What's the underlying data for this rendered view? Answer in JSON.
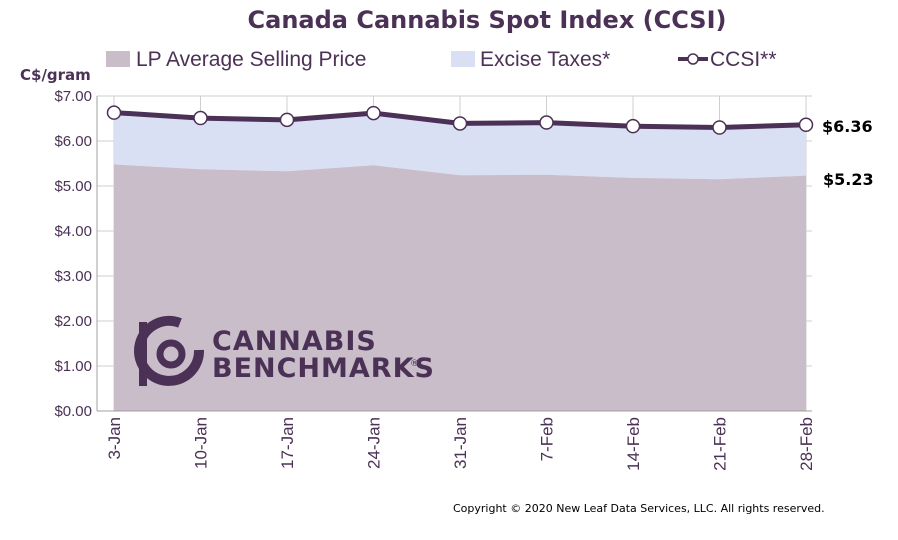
{
  "chart_data": {
    "type": "area",
    "title": "Canada Cannabis Spot Index (CCSI)",
    "ylabel": "C$/gram",
    "xlabel": "",
    "categories": [
      "3-Jan",
      "10-Jan",
      "17-Jan",
      "24-Jan",
      "31-Jan",
      "7-Feb",
      "14-Feb",
      "21-Feb",
      "28-Feb"
    ],
    "ylim": [
      0,
      7
    ],
    "yticks": [
      "$0.00",
      "$1.00",
      "$2.00",
      "$3.00",
      "$4.00",
      "$5.00",
      "$6.00",
      "$7.00"
    ],
    "stacked": true,
    "grid": true,
    "legend_position": "top",
    "series": [
      {
        "name": "LP Average Selling Price",
        "kind": "area",
        "color": "#c9bdc9",
        "values": [
          5.48,
          5.37,
          5.33,
          5.46,
          5.24,
          5.25,
          5.18,
          5.15,
          5.23
        ]
      },
      {
        "name": "Excise Taxes*",
        "kind": "area",
        "color": "#d9e0f3",
        "values": [
          1.15,
          1.14,
          1.14,
          1.16,
          1.15,
          1.16,
          1.15,
          1.15,
          1.13
        ]
      },
      {
        "name": "CCSI**",
        "kind": "line",
        "color": "#4b3155",
        "values": [
          6.63,
          6.51,
          6.47,
          6.62,
          6.39,
          6.41,
          6.33,
          6.3,
          6.36
        ]
      }
    ],
    "end_labels": {
      "ccsi": "$6.36",
      "lp": "$5.23"
    }
  },
  "watermark": {
    "line1": "CANNABIS",
    "line2": "BENCHMARKS",
    "mark": "®"
  },
  "copyright": "Copyright © 2020 New Leaf Data Services, LLC. All rights reserved."
}
